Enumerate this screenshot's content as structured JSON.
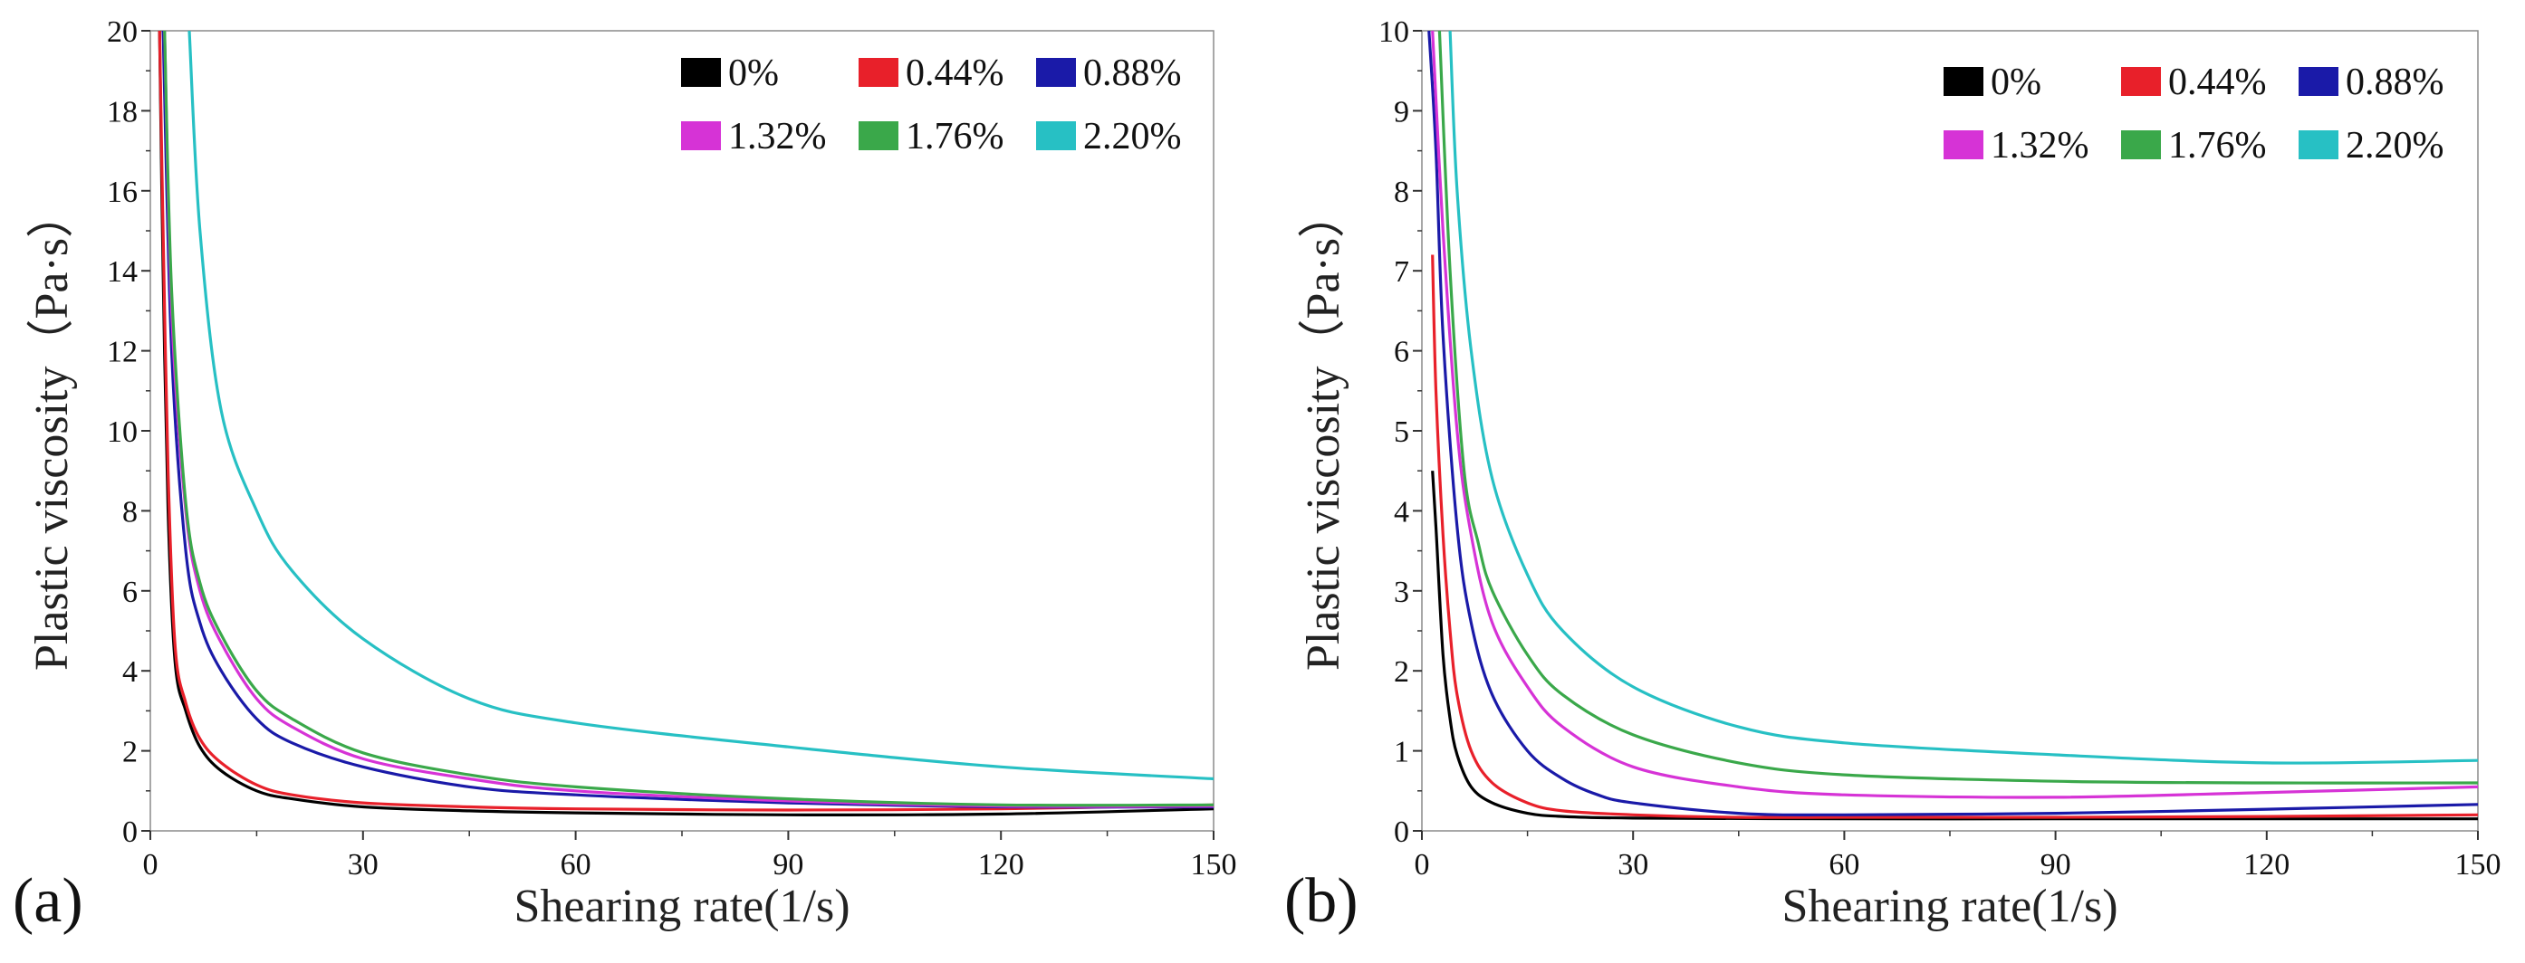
{
  "chart_data": [
    {
      "type": "line",
      "panel_label": "(a)",
      "xlabel": "Shearing rate(1/s)",
      "ylabel": "Plastic viscosity（Pa·s）",
      "xlim": [
        0,
        150
      ],
      "ylim": [
        0,
        20
      ],
      "xticks": [
        "0",
        "30",
        "60",
        "90",
        "120",
        "150"
      ],
      "yticks": [
        "0",
        "2",
        "4",
        "6",
        "8",
        "10",
        "12",
        "14",
        "16",
        "18",
        "20"
      ],
      "legend_position": "top-right",
      "series": [
        {
          "name": "0%",
          "color": "#000000",
          "x": [
            1.3,
            1.8,
            2.5,
            3.5,
            5,
            7,
            10,
            15,
            20,
            30,
            45,
            60,
            90,
            120,
            150
          ],
          "y": [
            20,
            14,
            8,
            4.2,
            3.0,
            2.1,
            1.5,
            1.0,
            0.8,
            0.6,
            0.5,
            0.45,
            0.4,
            0.42,
            0.55
          ]
        },
        {
          "name": "0.44%",
          "color": "#e8202a",
          "x": [
            1.3,
            1.8,
            2.5,
            3.5,
            5,
            7,
            10,
            15,
            20,
            30,
            45,
            60,
            90,
            120,
            150
          ],
          "y": [
            20,
            15,
            9,
            4.6,
            3.2,
            2.3,
            1.7,
            1.15,
            0.9,
            0.7,
            0.6,
            0.55,
            0.52,
            0.55,
            0.65
          ]
        },
        {
          "name": "0.88%",
          "color": "#1a1aa8",
          "x": [
            1.8,
            3,
            5,
            7,
            10,
            15,
            20,
            30,
            45,
            60,
            90,
            120,
            150
          ],
          "y": [
            20,
            12,
            7,
            5.2,
            4.0,
            2.8,
            2.2,
            1.6,
            1.1,
            0.9,
            0.7,
            0.6,
            0.6
          ]
        },
        {
          "name": "1.32%",
          "color": "#d633d6",
          "x": [
            2,
            3,
            5,
            7,
            10,
            15,
            20,
            30,
            45,
            60,
            90,
            120,
            150
          ],
          "y": [
            20,
            13,
            8,
            6.0,
            4.7,
            3.3,
            2.6,
            1.8,
            1.3,
            1.0,
            0.75,
            0.62,
            0.62
          ]
        },
        {
          "name": "1.76%",
          "color": "#3aa84a",
          "x": [
            2,
            3,
            5,
            7,
            10,
            15,
            20,
            30,
            45,
            60,
            90,
            120,
            150
          ],
          "y": [
            20,
            13.5,
            8.2,
            6.2,
            4.9,
            3.5,
            2.8,
            1.95,
            1.4,
            1.1,
            0.8,
            0.65,
            0.65
          ]
        },
        {
          "name": "2.20%",
          "color": "#27c0c4",
          "x": [
            5.5,
            7,
            10,
            15,
            20,
            30,
            45,
            60,
            90,
            120,
            150
          ],
          "y": [
            20,
            15,
            10.5,
            8.0,
            6.5,
            4.8,
            3.3,
            2.7,
            2.1,
            1.6,
            1.3
          ]
        }
      ]
    },
    {
      "type": "line",
      "panel_label": "(b)",
      "xlabel": "Shearing rate(1/s)",
      "ylabel": "Plastic viscosity（Pa·s）",
      "xlim": [
        0,
        150
      ],
      "ylim": [
        0,
        10
      ],
      "xticks": [
        "0",
        "30",
        "60",
        "90",
        "120",
        "150"
      ],
      "yticks": [
        "0",
        "1",
        "2",
        "3",
        "4",
        "5",
        "6",
        "7",
        "8",
        "9",
        "10"
      ],
      "legend_position": "top-right",
      "series": [
        {
          "name": "0%",
          "color": "#000000",
          "x": [
            1.5,
            2,
            3,
            4,
            5,
            7,
            10,
            15,
            20,
            30,
            60,
            90,
            120,
            150
          ],
          "y": [
            4.5,
            3.8,
            2.2,
            1.4,
            0.95,
            0.55,
            0.35,
            0.22,
            0.18,
            0.16,
            0.15,
            0.15,
            0.15,
            0.15
          ]
        },
        {
          "name": "0.44%",
          "color": "#e8202a",
          "x": [
            1.5,
            2,
            3,
            4,
            5,
            7,
            10,
            15,
            20,
            30,
            45,
            60,
            90,
            120,
            150
          ],
          "y": [
            7.2,
            5.5,
            3.7,
            2.5,
            1.7,
            1.0,
            0.6,
            0.35,
            0.25,
            0.2,
            0.17,
            0.17,
            0.17,
            0.18,
            0.2
          ]
        },
        {
          "name": "0.88%",
          "color": "#1a1aa8",
          "x": [
            1,
            2,
            3,
            5,
            7,
            10,
            15,
            20,
            25,
            30,
            45,
            60,
            90,
            120,
            150
          ],
          "y": [
            10,
            8.5,
            6.2,
            3.8,
            2.6,
            1.7,
            1.0,
            0.65,
            0.45,
            0.35,
            0.22,
            0.2,
            0.22,
            0.27,
            0.33
          ]
        },
        {
          "name": "1.32%",
          "color": "#d633d6",
          "x": [
            1.5,
            3,
            5,
            7,
            10,
            15,
            20,
            30,
            45,
            60,
            90,
            120,
            150
          ],
          "y": [
            10,
            7.5,
            5.0,
            3.7,
            2.6,
            1.8,
            1.3,
            0.8,
            0.55,
            0.45,
            0.42,
            0.48,
            0.55
          ]
        },
        {
          "name": "1.76%",
          "color": "#3aa84a",
          "x": [
            2.5,
            4,
            6,
            8,
            10,
            15,
            20,
            30,
            45,
            60,
            90,
            120,
            150
          ],
          "y": [
            10,
            7,
            4.5,
            3.6,
            3.0,
            2.2,
            1.7,
            1.2,
            0.85,
            0.7,
            0.62,
            0.6,
            0.6
          ]
        },
        {
          "name": "2.20%",
          "color": "#27c0c4",
          "x": [
            4,
            5,
            7,
            10,
            15,
            20,
            30,
            45,
            60,
            90,
            120,
            150
          ],
          "y": [
            10,
            8,
            6,
            4.4,
            3.2,
            2.5,
            1.8,
            1.3,
            1.1,
            0.95,
            0.85,
            0.88
          ]
        }
      ]
    }
  ]
}
